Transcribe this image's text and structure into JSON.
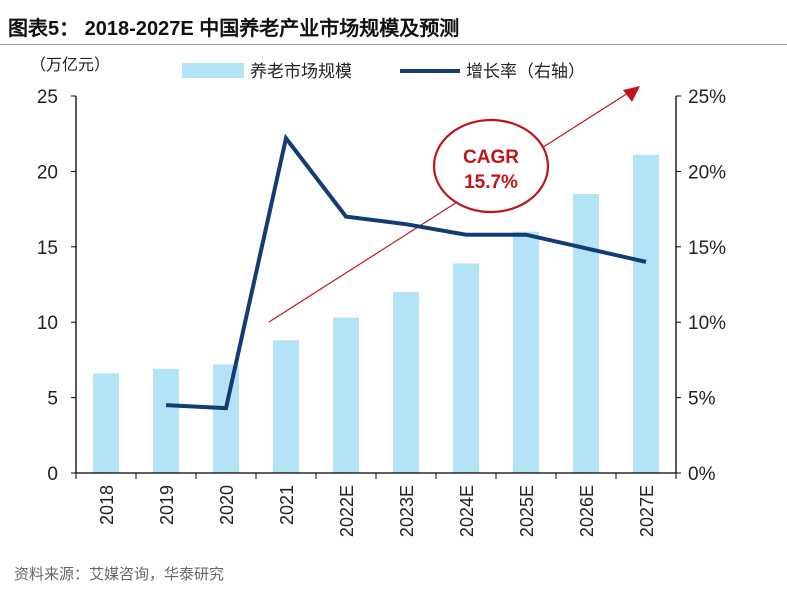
{
  "title": "图表5： 2018-2027E 中国养老产业市场规模及预测",
  "source": "资料来源：艾媒咨询，华泰研究",
  "chart_data": {
    "type": "bar",
    "categories": [
      "2018",
      "2019",
      "2020",
      "2021",
      "2022E",
      "2023E",
      "2024E",
      "2025E",
      "2026E",
      "2027E"
    ],
    "series": [
      {
        "name": "养老市场规模",
        "type": "bar",
        "axis": "left",
        "color": "#b3e3f6",
        "values": [
          6.6,
          6.9,
          7.2,
          8.8,
          10.3,
          12.0,
          13.9,
          16.0,
          18.5,
          21.1
        ]
      },
      {
        "name": "增长率（右轴）",
        "type": "line",
        "axis": "right",
        "color": "#123c73",
        "values": [
          null,
          4.5,
          4.3,
          22.2,
          17.0,
          16.5,
          15.8,
          15.8,
          14.9,
          14.0
        ]
      }
    ],
    "ylabel": "（万亿元）",
    "ylim": [
      0,
      25
    ],
    "yticks": [
      "0",
      "5",
      "10",
      "15",
      "20",
      "25"
    ],
    "y2lim": [
      0,
      25
    ],
    "y2ticks": [
      "0%",
      "5%",
      "10%",
      "15%",
      "20%",
      "25%"
    ],
    "legend_position": "top",
    "annotation": {
      "line1": "CAGR",
      "line2": "15.7%",
      "color": "#c0141c"
    }
  }
}
